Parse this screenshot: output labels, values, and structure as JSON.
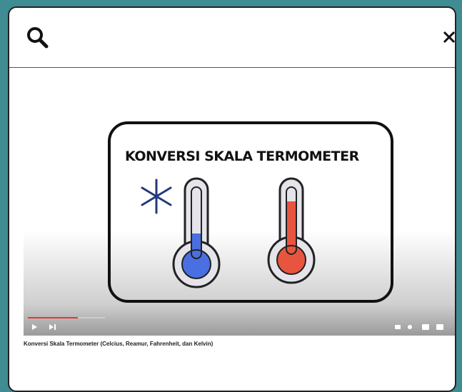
{
  "video": {
    "title_in_frame": "KONVERSI SKALA TERMOMETER",
    "caption": "Konversi Skala Termometer (Celcius, Reamur, Fahrenheit, dan Kelvin)"
  }
}
